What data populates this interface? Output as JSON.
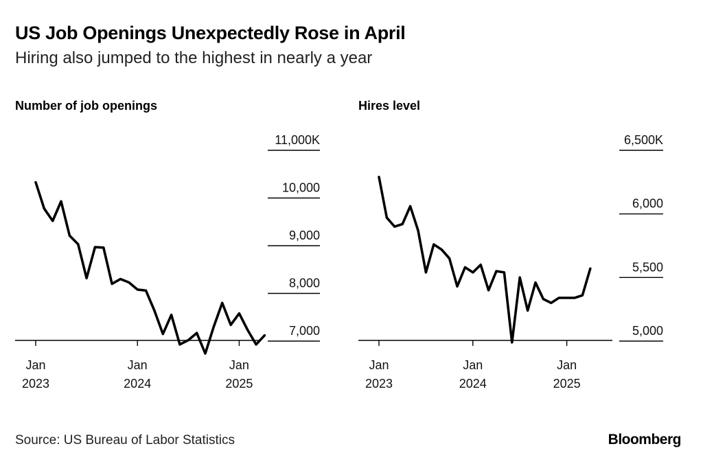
{
  "header": {
    "title": "US Job Openings Unexpectedly Rose in April",
    "subtitle": "Hiring also jumped to the highest in nearly a year"
  },
  "footer": {
    "source": "Source: US Bureau of Labor Statistics",
    "logo": "Bloomberg"
  },
  "colors": {
    "line": "#000000",
    "axis": "#000000",
    "text": "#111111"
  },
  "chart_data": [
    {
      "type": "line",
      "title": "Number of job openings",
      "xlabel": "",
      "ylabel": "",
      "ylim": [
        6700,
        11000
      ],
      "y_ticks": [
        11000,
        10000,
        9000,
        8000,
        7000
      ],
      "y_tick_labels": [
        "11,000K",
        "10,000",
        "9,000",
        "8,000",
        "7,000"
      ],
      "x_ticks": [
        {
          "date": "2023-01",
          "line1": "Jan",
          "line2": "2023"
        },
        {
          "date": "2024-01",
          "line1": "Jan",
          "line2": "2024"
        },
        {
          "date": "2025-01",
          "line1": "Jan",
          "line2": "2025"
        }
      ],
      "grid": false,
      "series": [
        {
          "x": [
            "2023-01",
            "2023-02",
            "2023-03",
            "2023-04",
            "2023-05",
            "2023-06",
            "2023-07",
            "2023-08",
            "2023-09",
            "2023-10",
            "2023-11",
            "2023-12",
            "2024-01",
            "2024-02",
            "2024-03",
            "2024-04",
            "2024-05",
            "2024-06",
            "2024-07",
            "2024-08",
            "2024-09",
            "2024-10",
            "2024-11",
            "2024-12",
            "2025-01",
            "2025-02",
            "2025-03",
            "2025-04"
          ],
          "values": [
            10330,
            9780,
            9520,
            9930,
            9210,
            9030,
            8320,
            8970,
            8960,
            8200,
            8300,
            8230,
            8080,
            8060,
            7640,
            7150,
            7550,
            6930,
            7020,
            7170,
            6740,
            7300,
            7800,
            7340,
            7580,
            7230,
            6930,
            7120
          ]
        }
      ]
    },
    {
      "type": "line",
      "title": "Hires level",
      "xlabel": "",
      "ylabel": "",
      "ylim": [
        4850,
        6500
      ],
      "y_ticks": [
        6500,
        6000,
        5500,
        5000
      ],
      "y_tick_labels": [
        "6,500K",
        "6,000",
        "5,500",
        "5,000"
      ],
      "x_ticks": [
        {
          "date": "2023-01",
          "line1": "Jan",
          "line2": "2023"
        },
        {
          "date": "2024-01",
          "line1": "Jan",
          "line2": "2024"
        },
        {
          "date": "2025-01",
          "line1": "Jan",
          "line2": "2025"
        }
      ],
      "grid": false,
      "series": [
        {
          "x": [
            "2023-01",
            "2023-02",
            "2023-03",
            "2023-04",
            "2023-05",
            "2023-06",
            "2023-07",
            "2023-08",
            "2023-09",
            "2023-10",
            "2023-11",
            "2023-12",
            "2024-01",
            "2024-02",
            "2024-03",
            "2024-04",
            "2024-05",
            "2024-06",
            "2024-07",
            "2024-08",
            "2024-09",
            "2024-10",
            "2024-11",
            "2024-12",
            "2025-01",
            "2025-02",
            "2025-03",
            "2025-04"
          ],
          "values": [
            6290,
            5970,
            5900,
            5920,
            6060,
            5870,
            5540,
            5760,
            5720,
            5650,
            5430,
            5580,
            5540,
            5600,
            5400,
            5550,
            5540,
            4990,
            5500,
            5240,
            5460,
            5330,
            5300,
            5340,
            5340,
            5340,
            5360,
            5570
          ]
        }
      ]
    }
  ]
}
